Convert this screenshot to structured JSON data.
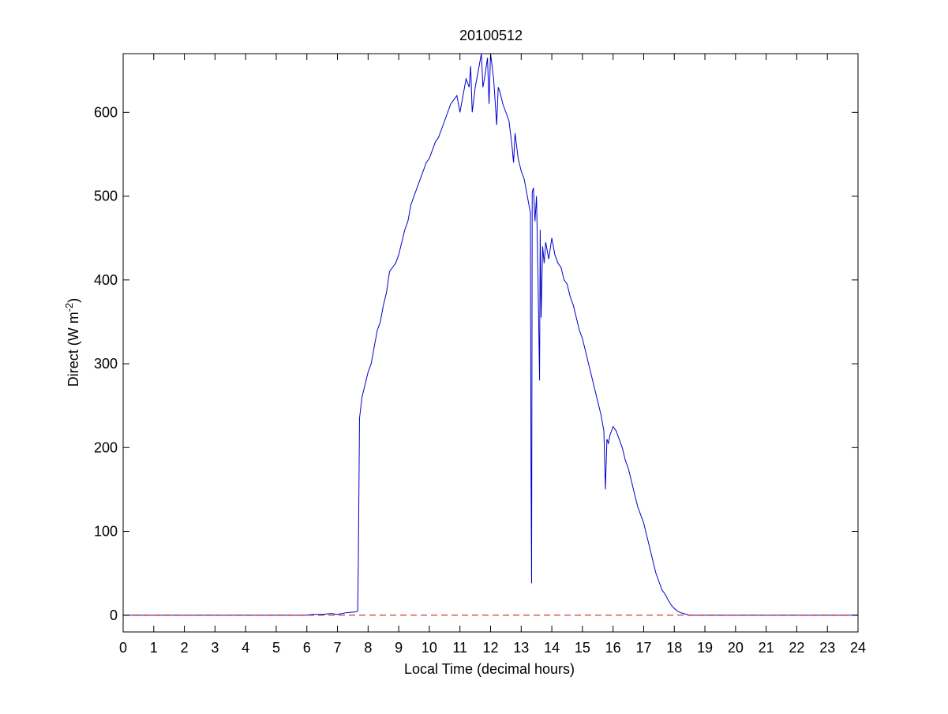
{
  "figure": {
    "background": "#ffffff"
  },
  "chart_data": {
    "type": "line",
    "title": "20100512",
    "xlabel": "Local Time (decimal hours)",
    "ylabel": "Direct (W m-2)",
    "ylabel_parts": {
      "base": "Direct (W m",
      "sup": "-2",
      "tail": ")"
    },
    "xlim": [
      0,
      24
    ],
    "ylim": [
      -20,
      670
    ],
    "xticks": [
      0,
      1,
      2,
      3,
      4,
      5,
      6,
      7,
      8,
      9,
      10,
      11,
      12,
      13,
      14,
      15,
      16,
      17,
      18,
      19,
      20,
      21,
      22,
      23,
      24
    ],
    "yticks": [
      0,
      100,
      200,
      300,
      400,
      500,
      600
    ],
    "grid": false,
    "series": [
      {
        "color": "#0000cc",
        "style": "solid",
        "x": [
          0,
          6.0,
          6.2,
          6.5,
          6.8,
          7.0,
          7.3,
          7.6,
          7.66,
          7.68,
          7.72,
          7.8,
          7.9,
          8.0,
          8.1,
          8.2,
          8.3,
          8.4,
          8.5,
          8.6,
          8.7,
          8.8,
          8.9,
          9.0,
          9.1,
          9.2,
          9.3,
          9.4,
          9.5,
          9.6,
          9.7,
          9.8,
          9.9,
          10.0,
          10.1,
          10.2,
          10.3,
          10.4,
          10.5,
          10.6,
          10.7,
          10.8,
          10.9,
          11.0,
          11.1,
          11.2,
          11.3,
          11.35,
          11.4,
          11.5,
          11.6,
          11.7,
          11.75,
          11.8,
          11.9,
          11.95,
          12.0,
          12.1,
          12.2,
          12.25,
          12.3,
          12.4,
          12.5,
          12.6,
          12.7,
          12.75,
          12.8,
          12.9,
          13.0,
          13.1,
          13.2,
          13.3,
          13.32,
          13.34,
          13.36,
          13.4,
          13.45,
          13.5,
          13.55,
          13.6,
          13.62,
          13.65,
          13.7,
          13.75,
          13.8,
          13.9,
          14.0,
          14.1,
          14.2,
          14.3,
          14.4,
          14.5,
          14.6,
          14.7,
          14.8,
          14.9,
          15.0,
          15.1,
          15.2,
          15.3,
          15.4,
          15.5,
          15.6,
          15.7,
          15.75,
          15.8,
          15.85,
          15.9,
          16.0,
          16.1,
          16.2,
          16.3,
          16.4,
          16.5,
          16.6,
          16.7,
          16.8,
          16.9,
          17.0,
          17.1,
          17.2,
          17.3,
          17.4,
          17.5,
          17.6,
          17.7,
          17.8,
          17.9,
          18.0,
          18.1,
          18.2,
          18.3,
          18.4,
          18.5,
          18.7,
          19.0,
          24
        ],
        "y": [
          0,
          0,
          1,
          1,
          2,
          1,
          3,
          4,
          5,
          60,
          235,
          260,
          275,
          290,
          300,
          320,
          340,
          350,
          370,
          385,
          410,
          415,
          420,
          430,
          445,
          460,
          470,
          490,
          500,
          510,
          520,
          530,
          540,
          545,
          555,
          565,
          570,
          580,
          590,
          600,
          610,
          615,
          620,
          600,
          620,
          640,
          630,
          655,
          600,
          630,
          650,
          670,
          630,
          640,
          665,
          610,
          670,
          640,
          585,
          630,
          625,
          610,
          600,
          590,
          560,
          540,
          575,
          545,
          530,
          520,
          500,
          480,
          175,
          38,
          505,
          510,
          470,
          500,
          400,
          280,
          460,
          355,
          440,
          420,
          445,
          425,
          450,
          430,
          420,
          415,
          400,
          395,
          380,
          370,
          355,
          340,
          330,
          315,
          300,
          285,
          270,
          255,
          240,
          220,
          150,
          210,
          205,
          215,
          225,
          220,
          210,
          200,
          185,
          175,
          160,
          145,
          130,
          120,
          110,
          95,
          80,
          65,
          50,
          40,
          30,
          25,
          18,
          12,
          8,
          5,
          3,
          2,
          1,
          0,
          0,
          0,
          0
        ]
      },
      {
        "color": "#cc0000",
        "style": "dashed",
        "x": [
          0,
          24
        ],
        "y": [
          0,
          0
        ]
      }
    ]
  }
}
